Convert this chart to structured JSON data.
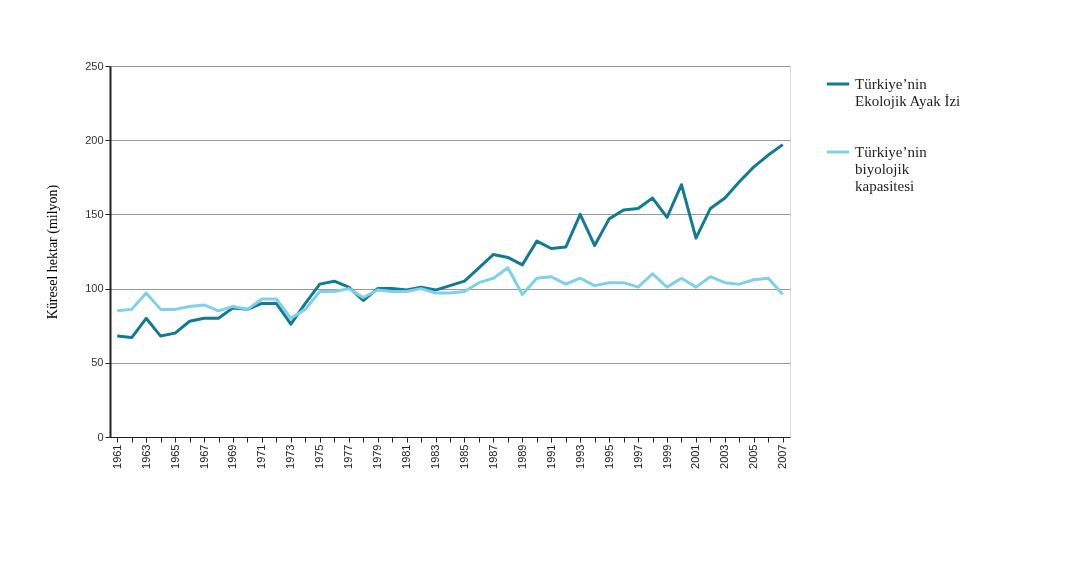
{
  "chart_data": {
    "type": "line",
    "ylabel": "Küresel hektar (milyon)",
    "categories": [
      "1961",
      null,
      "1963",
      null,
      "1965",
      null,
      "1967",
      null,
      "1969",
      null,
      "1971",
      null,
      "1973",
      null,
      "1975",
      null,
      "1977",
      null,
      "1979",
      null,
      "1981",
      null,
      "1983",
      null,
      "1985",
      null,
      "1987",
      null,
      "1989",
      null,
      "1991",
      null,
      "1993",
      null,
      "1995",
      null,
      "1997",
      null,
      "1999",
      null,
      "2001",
      null,
      "2003",
      null,
      "2005",
      null,
      "2007"
    ],
    "series": [
      {
        "name": "Türkiye’nin Ekolojik Ayak İzi",
        "color": "#137a94",
        "values": [
          68,
          67,
          80,
          68,
          70,
          78,
          80,
          80,
          87,
          86,
          90,
          90,
          76,
          90,
          103,
          105,
          101,
          92,
          100,
          100,
          99,
          101,
          99,
          102,
          105,
          114,
          123,
          121,
          116,
          132,
          127,
          128,
          150,
          129,
          147,
          153,
          154,
          161,
          148,
          170,
          134,
          154,
          161,
          172,
          182,
          190,
          197
        ]
      },
      {
        "name": "Türkiye’nin biyolojik kapasitesi",
        "color": "#7fd0ea",
        "values": [
          85,
          86,
          97,
          86,
          86,
          88,
          89,
          85,
          88,
          86,
          93,
          93,
          80,
          86,
          98,
          98,
          100,
          94,
          99,
          98,
          98,
          100,
          97,
          97,
          98,
          104,
          107,
          114,
          96,
          107,
          108,
          103,
          107,
          102,
          104,
          104,
          101,
          110,
          101,
          107,
          101,
          108,
          104,
          103,
          106,
          107,
          96
        ]
      }
    ],
    "ylim": [
      0,
      250
    ],
    "yticks": [
      0,
      50,
      100,
      150,
      200,
      250
    ],
    "grid": "y",
    "legend": "right",
    "line_style": "solid",
    "marker": "none"
  }
}
